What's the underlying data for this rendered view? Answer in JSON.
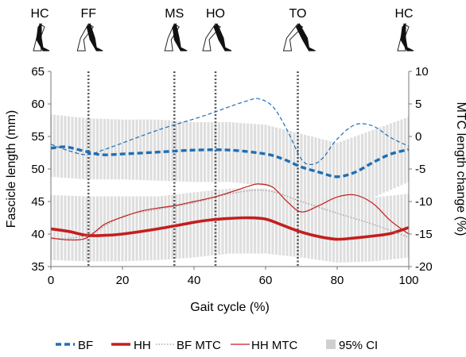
{
  "chart_data": {
    "type": "line",
    "xlabel": "Gait cycle (%)",
    "ylabel_left": "Fascicle length (mm)",
    "ylabel_right": "MTC length change (%)",
    "xlim": [
      0,
      100
    ],
    "ylim_left": [
      35,
      65
    ],
    "ylim_right": [
      -20,
      10
    ],
    "xticks": [
      "0",
      "20",
      "40",
      "60",
      "80",
      "100"
    ],
    "yticks_left": [
      "35",
      "40",
      "45",
      "50",
      "55",
      "60",
      "65"
    ],
    "yticks_right": [
      "-20",
      "-15",
      "-10",
      "-5",
      "0",
      "5",
      "10"
    ],
    "gait_events": [
      {
        "label": "HC",
        "x": 0
      },
      {
        "label": "FF",
        "x": 10.5
      },
      {
        "label": "MS",
        "x": 34.5
      },
      {
        "label": "HO",
        "x": 46
      },
      {
        "label": "TO",
        "x": 69
      },
      {
        "label": "HC",
        "x": 100
      }
    ],
    "legend": [
      "BF",
      "HH",
      "BF MTC",
      "HH MTC",
      "95% CI"
    ],
    "colors": {
      "bf": "#1f6eb4",
      "hh": "#c41e1e",
      "mtc_gray": "#9a9a9a",
      "ci": "#dedede"
    },
    "series": [
      {
        "name": "BF",
        "axis": "left",
        "style": "dashed-thick",
        "x": [
          0,
          4,
          9,
          14,
          20,
          30,
          40,
          50,
          60,
          65,
          70,
          75,
          80,
          85,
          90,
          95,
          100
        ],
        "values": [
          53.2,
          53.4,
          52.8,
          52.2,
          52.3,
          52.6,
          52.9,
          52.9,
          52.3,
          51.5,
          50.3,
          49.5,
          48.8,
          49.5,
          51.0,
          52.3,
          53.0
        ]
      },
      {
        "name": "HH",
        "axis": "left",
        "style": "solid-thick",
        "x": [
          0,
          5,
          10,
          15,
          20,
          30,
          40,
          45,
          50,
          55,
          60,
          65,
          70,
          75,
          80,
          85,
          90,
          95,
          100
        ],
        "values": [
          40.8,
          40.4,
          39.8,
          39.8,
          40.0,
          40.8,
          41.8,
          42.2,
          42.4,
          42.5,
          42.3,
          41.3,
          40.3,
          39.6,
          39.2,
          39.4,
          39.7,
          40.1,
          41.0
        ]
      },
      {
        "name": "BF MTC",
        "axis": "right",
        "style": "dotted-thin",
        "x": [
          0,
          10,
          20,
          30,
          40,
          50,
          60,
          70,
          80,
          90,
          100
        ],
        "values": [
          -15.8,
          -15.2,
          -12.3,
          -11.2,
          -10.2,
          -8.8,
          -8.3,
          -10.0,
          -11.8,
          -13.5,
          -15.5
        ]
      },
      {
        "name": "HH MTC",
        "axis": "right",
        "style": "solid-thin",
        "x": [
          0,
          5,
          10,
          15,
          20,
          25,
          30,
          35,
          40,
          45,
          50,
          55,
          58,
          62,
          66,
          70,
          75,
          80,
          85,
          90,
          95,
          100
        ],
        "values": [
          -15.6,
          -15.9,
          -15.6,
          -13.5,
          -12.4,
          -11.5,
          -11.0,
          -10.6,
          -10.0,
          -9.4,
          -8.6,
          -7.7,
          -7.3,
          -7.8,
          -10.0,
          -11.6,
          -10.6,
          -9.3,
          -9.0,
          -10.3,
          -13.0,
          -15.0
        ]
      },
      {
        "name": "BF MTC",
        "axis": "right",
        "style": "dashed-thin-blue",
        "x": [
          0,
          5,
          10,
          15,
          20,
          30,
          40,
          45,
          50,
          55,
          58,
          62,
          66,
          70,
          73,
          76,
          80,
          85,
          90,
          95,
          100
        ],
        "values": [
          -1.2,
          -2.2,
          -2.8,
          -2.0,
          -1.0,
          1.0,
          2.7,
          3.6,
          4.6,
          5.5,
          5.8,
          4.6,
          1.0,
          -3.5,
          -4.3,
          -3.3,
          -0.4,
          1.8,
          1.6,
          -0.2,
          -1.5
        ]
      }
    ],
    "ci_bands": [
      {
        "name": "BF 95% CI",
        "axis": "left",
        "x": [
          0,
          10,
          20,
          30,
          40,
          50,
          60,
          70,
          80,
          90,
          100
        ],
        "lower": [
          48.8,
          48.4,
          48.4,
          48.2,
          48.0,
          48.0,
          47.4,
          45.8,
          44.8,
          45.6,
          48.0
        ],
        "upper": [
          58.4,
          57.8,
          57.6,
          57.6,
          57.2,
          57.2,
          56.8,
          55.4,
          54.0,
          56.0,
          58.0
        ]
      },
      {
        "name": "HH 95% CI",
        "axis": "left",
        "x": [
          0,
          10,
          20,
          30,
          40,
          50,
          60,
          70,
          80,
          90,
          100
        ],
        "lower": [
          36.0,
          35.8,
          35.8,
          36.0,
          36.4,
          37.0,
          37.0,
          36.4,
          35.6,
          35.8,
          36.4
        ],
        "upper": [
          46.0,
          45.8,
          45.8,
          45.8,
          46.4,
          47.0,
          47.0,
          46.2,
          45.4,
          45.6,
          46.2
        ]
      }
    ]
  }
}
